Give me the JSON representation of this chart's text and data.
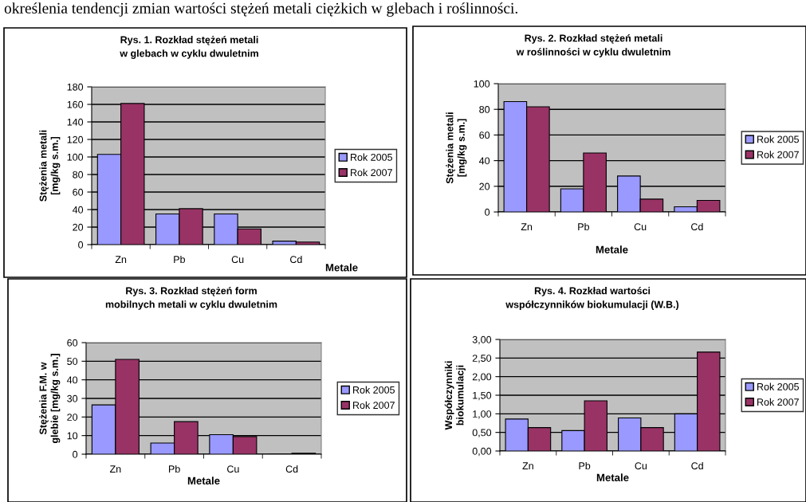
{
  "chart_data": [
    {
      "type": "bar",
      "title": "Rys. 1. Rozkład stężeń metali w glebach w cyklu dwuletnim",
      "xlabel": "Metale",
      "ylabel": "Stężenia metali [mg/kg s.m.]",
      "categories": [
        "Zn",
        "Pb",
        "Cu",
        "Cd"
      ],
      "series": [
        {
          "name": "Rok 2005",
          "color": "#9999ff",
          "values": [
            103,
            35,
            35,
            4
          ]
        },
        {
          "name": "Rok 2007",
          "color": "#993366",
          "values": [
            161,
            41,
            18,
            3
          ]
        }
      ],
      "ylim": [
        0,
        180
      ],
      "yticks": [
        0,
        20,
        40,
        60,
        80,
        100,
        120,
        140,
        160,
        180
      ],
      "grid": "y",
      "legend": "right",
      "annotations": [
        "określenia tendencji zmian wartości stężeń metali ciężkich w glebach i roślinności."
      ]
    },
    {
      "type": "bar",
      "title": "Rys. 2. Rozkład stężeń metali w roślinności w cyklu dwuletnim",
      "xlabel": "Metale",
      "ylabel": "Stężenia metali [mg/kg s.m.]",
      "categories": [
        "Zn",
        "Pb",
        "Cu",
        "Cd"
      ],
      "series": [
        {
          "name": "Rok 2005",
          "color": "#9999ff",
          "values": [
            86,
            18,
            28,
            4
          ]
        },
        {
          "name": "Rok 2007",
          "color": "#993366",
          "values": [
            82,
            46,
            10,
            9
          ]
        }
      ],
      "ylim": [
        0,
        100
      ],
      "yticks": [
        0,
        20,
        40,
        60,
        80,
        100
      ],
      "grid": "y",
      "legend": "right"
    },
    {
      "type": "bar",
      "title": "Rys. 3. Rozkład stężeń form mobilnych metali w cyklu dwuletnim",
      "xlabel": "Metale",
      "ylabel": "Stężenia F.M. w glebie [mg/kg s.m.]",
      "categories": [
        "Zn",
        "Pb",
        "Cu",
        "Cd"
      ],
      "series": [
        {
          "name": "Rok 2005",
          "color": "#9999ff",
          "values": [
            26.5,
            6,
            10.5,
            null
          ]
        },
        {
          "name": "Rok 2007",
          "color": "#993366",
          "values": [
            51,
            17.5,
            9.5,
            0.5
          ]
        }
      ],
      "ylim": [
        0,
        60
      ],
      "yticks": [
        0,
        10,
        20,
        30,
        40,
        50,
        60
      ],
      "grid": "y",
      "legend": "right"
    },
    {
      "type": "bar",
      "title": "Rys. 4. Rozkład wartości współczynników biokumulacji (W.B.)",
      "xlabel": "Metale",
      "ylabel": "Współczynniki biokumulacji",
      "categories": [
        "Zn",
        "Pb",
        "Cu",
        "Cd"
      ],
      "series": [
        {
          "name": "Rok 2005",
          "color": "#9999ff",
          "values": [
            0.86,
            0.55,
            0.89,
            1.0
          ]
        },
        {
          "name": "Rok 2007",
          "color": "#993366",
          "values": [
            0.63,
            1.35,
            0.63,
            2.66
          ]
        }
      ],
      "ylim": [
        0,
        3
      ],
      "yticks": [
        {
          "value": 0,
          "label": "0,00"
        },
        {
          "value": 0.5,
          "label": "0,50"
        },
        {
          "value": 1,
          "label": "1,00"
        },
        {
          "value": 1.5,
          "label": "1,50"
        },
        {
          "value": 2,
          "label": "2,00"
        },
        {
          "value": 2.5,
          "label": "2,50"
        },
        {
          "value": 3,
          "label": "3,00"
        }
      ],
      "grid": "y",
      "legend": "right"
    }
  ]
}
